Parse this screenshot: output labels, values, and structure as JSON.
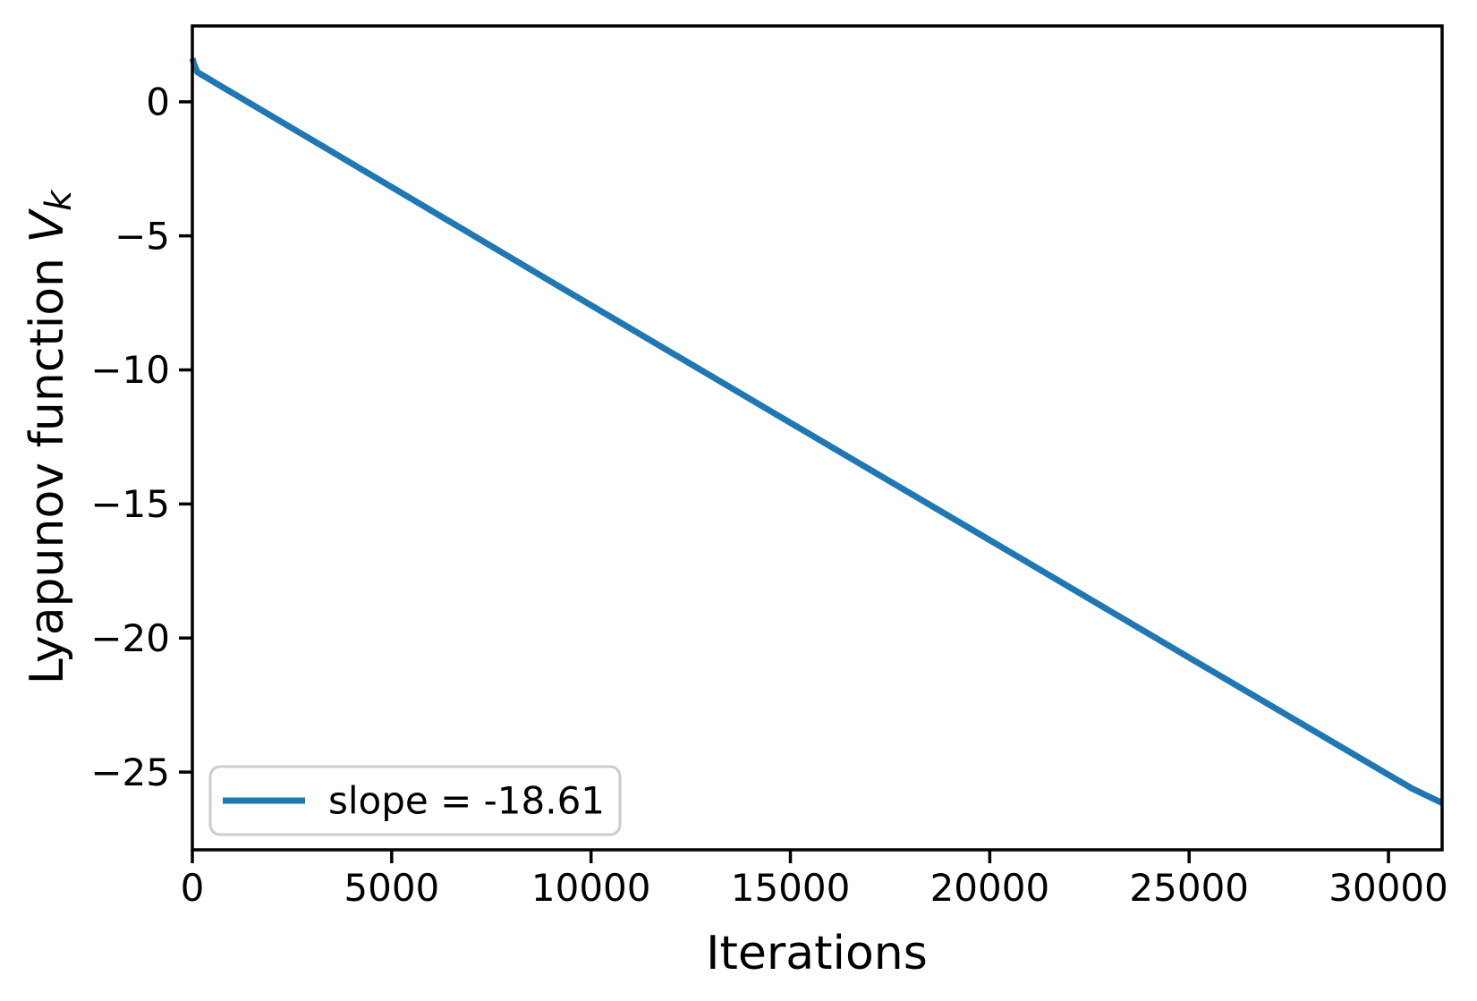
{
  "figure": {
    "background": "#ffffff",
    "axes_color": "#000000"
  },
  "chart_data": {
    "type": "line",
    "title": "",
    "xlabel": "Iterations",
    "ylabel": "Lyapunov function V_k",
    "ylabel_prefix": "Lyapunov function ",
    "ylabel_var": "V",
    "ylabel_sub": "k",
    "xlim": [
      0,
      31345
    ],
    "ylim": [
      -27.9,
      2.83
    ],
    "grid": false,
    "x_ticks": [
      0,
      5000,
      10000,
      15000,
      20000,
      25000,
      30000
    ],
    "x_tick_labels": [
      "0",
      "5000",
      "10000",
      "15000",
      "20000",
      "25000",
      "30000"
    ],
    "y_ticks": [
      0,
      -5,
      -10,
      -15,
      -20,
      -25
    ],
    "y_tick_labels": [
      "0",
      "−5",
      "−10",
      "−15",
      "−20",
      "−25"
    ],
    "legend": {
      "position": "lower-left",
      "entries": [
        {
          "label": "slope = -18.61",
          "color": "#1f77b4"
        }
      ]
    },
    "series": [
      {
        "name": "slope = -18.61",
        "color": "#1f77b4",
        "points": [
          [
            0,
            1.62
          ],
          [
            50,
            1.38
          ],
          [
            130,
            1.1
          ],
          [
            300,
            0.95
          ],
          [
            5000,
            -3.18
          ],
          [
            10000,
            -7.59
          ],
          [
            15000,
            -11.97
          ],
          [
            20000,
            -16.35
          ],
          [
            25000,
            -20.73
          ],
          [
            30000,
            -25.1
          ],
          [
            30600,
            -25.62
          ],
          [
            31345,
            -26.15
          ]
        ]
      }
    ]
  }
}
